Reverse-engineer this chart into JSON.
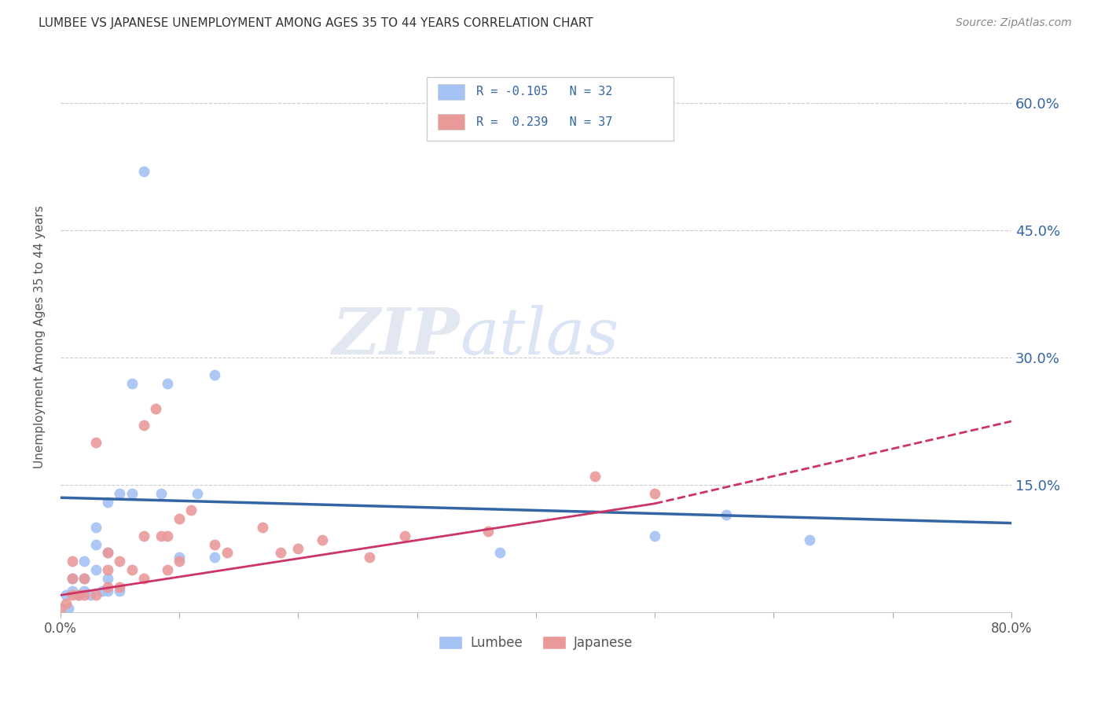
{
  "title": "LUMBEE VS JAPANESE UNEMPLOYMENT AMONG AGES 35 TO 44 YEARS CORRELATION CHART",
  "source": "Source: ZipAtlas.com",
  "ylabel": "Unemployment Among Ages 35 to 44 years",
  "xlim": [
    0,
    0.8
  ],
  "ylim": [
    0,
    0.65
  ],
  "yticks": [
    0.15,
    0.3,
    0.45,
    0.6
  ],
  "ytick_labels": [
    "15.0%",
    "30.0%",
    "45.0%",
    "60.0%"
  ],
  "xticks": [
    0.0,
    0.1,
    0.2,
    0.3,
    0.4,
    0.5,
    0.6,
    0.7,
    0.8
  ],
  "xtick_labels": [
    "0.0%",
    "",
    "",
    "",
    "",
    "",
    "",
    "",
    "80.0%"
  ],
  "lumbee_R": -0.105,
  "lumbee_N": 32,
  "japanese_R": 0.239,
  "japanese_N": 37,
  "lumbee_color": "#a4c2f4",
  "japanese_color": "#ea9999",
  "trend_lumbee_color": "#3465a4",
  "trend_japanese_color": "#cc3366",
  "lumbee_x": [
    0.005,
    0.01,
    0.01,
    0.015,
    0.02,
    0.02,
    0.02,
    0.025,
    0.03,
    0.03,
    0.03,
    0.035,
    0.04,
    0.04,
    0.04,
    0.04,
    0.05,
    0.05,
    0.06,
    0.06,
    0.07,
    0.085,
    0.09,
    0.1,
    0.115,
    0.13,
    0.13,
    0.37,
    0.5,
    0.56,
    0.63,
    0.007
  ],
  "lumbee_y": [
    0.02,
    0.025,
    0.04,
    0.02,
    0.025,
    0.04,
    0.06,
    0.02,
    0.05,
    0.08,
    0.1,
    0.025,
    0.025,
    0.04,
    0.07,
    0.13,
    0.025,
    0.14,
    0.14,
    0.27,
    0.52,
    0.14,
    0.27,
    0.065,
    0.14,
    0.065,
    0.28,
    0.07,
    0.09,
    0.115,
    0.085,
    0.005
  ],
  "japanese_x": [
    0.0,
    0.005,
    0.01,
    0.01,
    0.01,
    0.015,
    0.02,
    0.02,
    0.03,
    0.03,
    0.04,
    0.04,
    0.04,
    0.05,
    0.05,
    0.06,
    0.07,
    0.07,
    0.07,
    0.08,
    0.085,
    0.09,
    0.09,
    0.1,
    0.1,
    0.11,
    0.13,
    0.14,
    0.17,
    0.185,
    0.2,
    0.22,
    0.26,
    0.29,
    0.36,
    0.45,
    0.5
  ],
  "japanese_y": [
    0.005,
    0.01,
    0.02,
    0.04,
    0.06,
    0.02,
    0.02,
    0.04,
    0.02,
    0.2,
    0.03,
    0.05,
    0.07,
    0.03,
    0.06,
    0.05,
    0.04,
    0.09,
    0.22,
    0.24,
    0.09,
    0.05,
    0.09,
    0.06,
    0.11,
    0.12,
    0.08,
    0.07,
    0.1,
    0.07,
    0.075,
    0.085,
    0.065,
    0.09,
    0.095,
    0.16,
    0.14
  ],
  "watermark_zip": "ZIP",
  "watermark_atlas": "atlas",
  "background_color": "#ffffff",
  "grid_color": "#cccccc",
  "legend_text_color": "#3465a4"
}
